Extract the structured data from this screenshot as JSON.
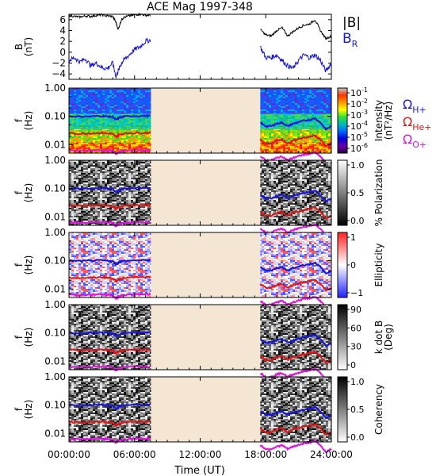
{
  "chart_data": {
    "type": "line",
    "title": "ACE Mag 1997-348",
    "xlabel": "Time (UT)",
    "x_ticks": [
      "00:00:00",
      "06:00:00",
      "12:00:00",
      "18:00:00",
      "24:00:00"
    ],
    "xlim_hours": [
      0,
      24
    ],
    "data_gap_hours": [
      7.5,
      17.5
    ],
    "gap_color": "#f5e6d3",
    "panels": [
      {
        "id": "b-field",
        "ylabel_lines": [
          "B",
          "(nT)"
        ],
        "ylim": [
          -5,
          7
        ],
        "y_ticks": [
          "6",
          "4",
          "2",
          "0",
          "−2",
          "−4"
        ],
        "y_tick_values": [
          6,
          4,
          2,
          0,
          -2,
          -4
        ],
        "series": [
          {
            "name": "|B|",
            "color": "#000000",
            "x": [
              0,
              0.5,
              1,
              1.5,
              2,
              2.5,
              3,
              3.5,
              4,
              4.3,
              4.5,
              4.8,
              5,
              5.5,
              6,
              6.5,
              7,
              7.5,
              17.5,
              18,
              18.5,
              19,
              19.5,
              20,
              20.5,
              21,
              21.5,
              22,
              22.5,
              23,
              23.5,
              24
            ],
            "y": [
              6.8,
              6.6,
              6.5,
              6.7,
              6.6,
              6.8,
              6.9,
              6.7,
              6.6,
              5.5,
              4.2,
              6.0,
              6.4,
              6.7,
              6.9,
              7.0,
              6.8,
              6.8,
              4.2,
              3.2,
              3.0,
              4.0,
              4.5,
              3.0,
              3.8,
              4.5,
              5.0,
              5.2,
              6.0,
              4.0,
              2.5,
              3.0
            ]
          },
          {
            "name": "B_R",
            "color": "#1515dc",
            "x": [
              0,
              0.5,
              1,
              1.5,
              2,
              2.5,
              3,
              3.5,
              4,
              4.3,
              4.5,
              4.8,
              5,
              5.5,
              6,
              6.5,
              7,
              7.5,
              17.5,
              18,
              18.5,
              19,
              19.5,
              20,
              20.5,
              21,
              21.5,
              22,
              22.5,
              23,
              23.5,
              24
            ],
            "y": [
              -1.5,
              -1.0,
              -1.8,
              -1.2,
              -2.5,
              -2.0,
              -2.8,
              -3.0,
              -2.0,
              -4.5,
              -3.5,
              -2.0,
              -1.5,
              -0.5,
              0.5,
              1.0,
              2.0,
              2.3,
              1.0,
              -1.0,
              -1.0,
              -0.5,
              -1.5,
              -2.5,
              -3.0,
              -1.5,
              -0.5,
              -1.0,
              -0.5,
              -1.5,
              -3.5,
              -2.0
            ]
          }
        ],
        "legend": [
          {
            "label": "|B|",
            "color": "#000000"
          },
          {
            "label": "B",
            "sub": "R",
            "color": "#1515dc"
          }
        ]
      },
      {
        "id": "intensity",
        "ylabel_lines": [
          "f",
          "(Hz)"
        ],
        "colorbar": {
          "label": "Intensity",
          "label2": "(nT²/Hz)",
          "gradient": [
            "#c8c8c8",
            "#ff3300",
            "#ff9900",
            "#ffff00",
            "#33dd33",
            "#00bbbb",
            "#0066ff",
            "#0000dd",
            "#6600aa",
            "#2b0040"
          ],
          "tick_labels": [
            {
              "base": "10",
              "exp": "-1"
            },
            {
              "base": "10",
              "exp": "-2"
            },
            {
              "base": "10",
              "exp": "-3"
            },
            {
              "base": "10",
              "exp": "-4"
            },
            {
              "base": "10",
              "exp": "-5"
            },
            {
              "base": "10",
              "exp": "-6"
            }
          ]
        },
        "legend": [
          {
            "label": "Ω",
            "sub": "H+",
            "color": "#1515dc"
          },
          {
            "label": "Ω",
            "sub": "He+",
            "color": "#dd1515"
          },
          {
            "label": "Ω",
            "sub": "O+",
            "color": "#dd15dd"
          }
        ]
      },
      {
        "id": "polarization",
        "ylabel_lines": [
          "f",
          "(Hz)"
        ],
        "colorbar": {
          "label": "% Polarization",
          "gradient": [
            "#ffffff",
            "#000000"
          ],
          "tick_labels": [
            {
              "base": "1.0"
            },
            {
              "base": "0.5"
            },
            {
              "base": "0.0"
            }
          ]
        }
      },
      {
        "id": "ellipticity",
        "ylabel_lines": [
          "f",
          "(Hz)"
        ],
        "colorbar": {
          "label": "Ellipticity",
          "gradient": [
            "#ff2222",
            "#ffffff",
            "#2222ff"
          ],
          "tick_labels": [
            {
              "base": "1"
            },
            {
              "base": "0"
            },
            {
              "base": "−1"
            }
          ]
        }
      },
      {
        "id": "kdotb",
        "ylabel_lines": [
          "f",
          "(Hz)"
        ],
        "colorbar": {
          "label": "k dot B",
          "label2": "(Deg)",
          "gradient": [
            "#000000",
            "#ffffff"
          ],
          "tick_labels": [
            {
              "base": "90"
            },
            {
              "base": "60"
            },
            {
              "base": "30"
            },
            {
              "base": "0"
            }
          ]
        }
      },
      {
        "id": "coherency",
        "ylabel_lines": [
          "f",
          "(Hz)"
        ],
        "colorbar": {
          "label": "Coherency",
          "gradient": [
            "#000000",
            "#ffffff"
          ],
          "tick_labels": [
            {
              "base": "1.0"
            },
            {
              "base": "0.5"
            },
            {
              "base": "0.0"
            }
          ]
        }
      }
    ],
    "freq_axis": {
      "scale": "log",
      "ylim": [
        0.005,
        1.0
      ],
      "y_ticks": [
        "1.00",
        "0.10",
        "0.01"
      ],
      "y_tick_values": [
        1.0,
        0.1,
        0.01
      ]
    },
    "gyrofrequency_series": [
      {
        "name": "ΩH+",
        "color": "#1515dc",
        "x": [
          0,
          1,
          2,
          3,
          3.5,
          4,
          4.3,
          4.6,
          5,
          6,
          7,
          7.5,
          17.5,
          18,
          18.5,
          19,
          19.5,
          20,
          20.5,
          21,
          21.5,
          22,
          22.5,
          23,
          23.5,
          24
        ],
        "y": [
          0.1,
          0.098,
          0.1,
          0.103,
          0.1,
          0.095,
          0.075,
          0.09,
          0.098,
          0.103,
          0.104,
          0.104,
          0.06,
          0.045,
          0.045,
          0.055,
          0.06,
          0.045,
          0.055,
          0.062,
          0.07,
          0.075,
          0.085,
          0.06,
          0.035,
          0.045
        ]
      },
      {
        "name": "ΩHe+",
        "color": "#dd1515",
        "x": [
          0,
          1,
          2,
          3,
          3.5,
          4,
          4.3,
          4.6,
          5,
          6,
          7,
          7.5,
          17.5,
          18,
          18.5,
          19,
          19.5,
          20,
          20.5,
          21,
          21.5,
          22,
          22.5,
          23,
          23.5,
          24
        ],
        "y": [
          0.025,
          0.0245,
          0.025,
          0.026,
          0.025,
          0.024,
          0.019,
          0.0225,
          0.0245,
          0.026,
          0.026,
          0.026,
          0.015,
          0.011,
          0.011,
          0.014,
          0.015,
          0.011,
          0.014,
          0.0155,
          0.0175,
          0.019,
          0.021,
          0.015,
          0.009,
          0.011
        ]
      },
      {
        "name": "ΩO+",
        "color": "#dd15dd",
        "x": [
          0,
          1,
          2,
          3,
          3.5,
          4,
          4.3,
          4.6,
          5,
          6,
          7,
          7.5,
          17.5,
          18,
          18.5,
          19,
          19.5,
          20,
          20.5,
          21,
          21.5,
          22,
          22.5,
          23,
          23.5,
          24
        ],
        "y": [
          0.0063,
          0.0061,
          0.0063,
          0.0065,
          0.0063,
          0.006,
          0.0047,
          0.0056,
          0.0061,
          0.0065,
          0.0065,
          0.0065,
          0.0038,
          0.0028,
          0.0028,
          0.0034,
          0.0038,
          0.0028,
          0.0034,
          0.0039,
          0.0044,
          0.0047,
          0.0053,
          0.0038,
          0.0022,
          0.0028
        ]
      }
    ]
  }
}
